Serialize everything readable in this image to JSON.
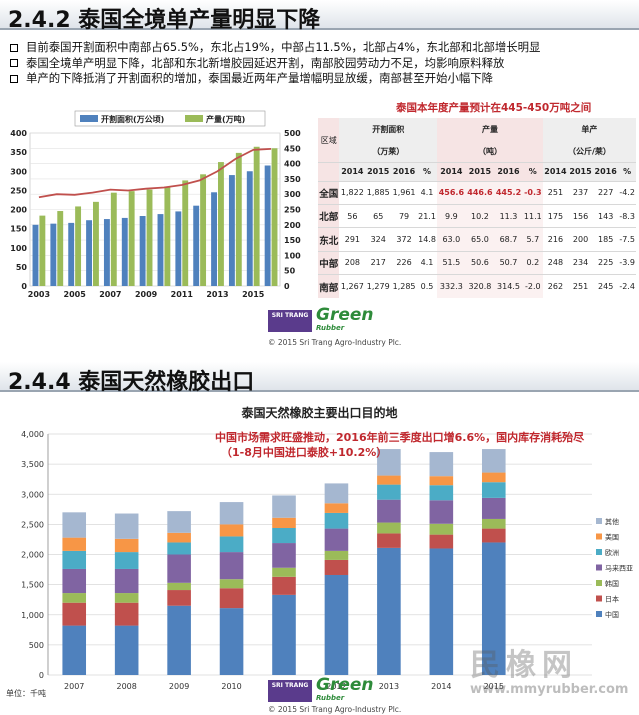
{
  "section1": {
    "title": "2.4.2 泰国全境单产量明显下降",
    "bullets": [
      "目前泰国开割面积中南部占65.5%，东北占19%，中部占11.5%，北部占4%，东北部和北部增长明显",
      "泰国全境单产明显下降，北部和东北新增胶园延迟开割，南部胶园劳动力不足，均影响原料释放",
      "单产的下降抵消了开割面积的增加，泰国最近两年产量增幅明显放缓，南部甚至开始小幅下降"
    ],
    "table_note": "泰国本年度产量预计在445-450万吨之间",
    "table": {
      "region_header": "区域",
      "groups": [
        {
          "name": "开割面积",
          "unit": "（万莱）"
        },
        {
          "name": "产量",
          "unit": "（吨）"
        },
        {
          "name": "单产",
          "unit": "（公斤/莱）"
        }
      ],
      "subheaders": [
        "2014",
        "2015",
        "2016",
        "%"
      ],
      "rows": [
        {
          "region": "全国",
          "area": [
            "1,822",
            "1,885",
            "1,961",
            "4.1"
          ],
          "output": [
            "456.6",
            "446.6",
            "445.2",
            "-0.3"
          ],
          "yield": [
            "251",
            "237",
            "227",
            "-4.2"
          ]
        },
        {
          "region": "北部",
          "area": [
            "56",
            "65",
            "79",
            "21.1"
          ],
          "output": [
            "9.9",
            "10.2",
            "11.3",
            "11.1"
          ],
          "yield": [
            "175",
            "156",
            "143",
            "-8.3"
          ]
        },
        {
          "region": "东北",
          "area": [
            "291",
            "324",
            "372",
            "14.8"
          ],
          "output": [
            "63.0",
            "65.0",
            "68.7",
            "5.7"
          ],
          "yield": [
            "216",
            "200",
            "185",
            "-7.5"
          ]
        },
        {
          "region": "中部",
          "area": [
            "208",
            "217",
            "226",
            "4.1"
          ],
          "output": [
            "51.5",
            "50.6",
            "50.7",
            "0.2"
          ],
          "yield": [
            "248",
            "234",
            "225",
            "-3.9"
          ]
        },
        {
          "region": "南部",
          "area": [
            "1,267",
            "1,279",
            "1,285",
            "0.5"
          ],
          "output": [
            "332.3",
            "320.8",
            "314.5",
            "-2.0"
          ],
          "yield": [
            "262",
            "251",
            "245",
            "-2.4"
          ]
        }
      ]
    },
    "logo": {
      "badge": "SRI TRANG",
      "green": "Green",
      "rubber": "Rubber"
    },
    "copyright": "© 2015 Sri Trang Agro-Industry Plc."
  },
  "section2": {
    "title": "2.4.4 泰国天然橡胶出口",
    "chart_title": "泰国天然橡胶主要出口目的地",
    "note_line1": "中国市场需求旺盛推动，2016年前三季度出口增6.6%，国内库存消耗殆尽",
    "note_line2": "（1-8月中国进口泰胶+10.2%）",
    "unit": "单位：千吨",
    "logo": {
      "badge": "SRI TRANG",
      "green": "Green",
      "rubber": "Rubber"
    },
    "copyright": "© 2015 Sri Trang Agro-Industry Plc."
  },
  "watermark": {
    "text": "民橡网",
    "url": "www.mmyrubber.com"
  },
  "chart_data": [
    {
      "type": "bar",
      "x": [
        2003,
        2004,
        2005,
        2006,
        2007,
        2008,
        2009,
        2010,
        2011,
        2012,
        2013,
        2014,
        2015,
        2016
      ],
      "xticks": [
        "2003",
        "2005",
        "2007",
        "2009",
        "2011",
        "2013",
        "2015"
      ],
      "series": [
        {
          "name": "开割面积(万公顷)",
          "type": "bar",
          "axis": "left",
          "color": "#4f81bd",
          "values": [
            160,
            163,
            165,
            172,
            175,
            178,
            183,
            188,
            195,
            210,
            245,
            290,
            300,
            315
          ]
        },
        {
          "name": "产量(万吨)",
          "type": "bar",
          "axis": "right",
          "color": "#9bbb59",
          "values": [
            230,
            245,
            260,
            275,
            305,
            310,
            315,
            325,
            345,
            365,
            405,
            435,
            455,
            450
          ]
        },
        {
          "type": "line",
          "axis": "right",
          "color": "#c0504d",
          "values": [
            290,
            300,
            298,
            305,
            315,
            312,
            318,
            322,
            330,
            345,
            375,
            415,
            445,
            448
          ]
        }
      ],
      "ylim_left": [
        0,
        400
      ],
      "yticks_left": [
        0,
        50,
        100,
        150,
        200,
        250,
        300,
        350,
        400
      ],
      "ylim_right": [
        0,
        500
      ],
      "yticks_right": [
        0,
        50,
        100,
        150,
        200,
        250,
        300,
        350,
        400,
        450,
        500
      ],
      "legend_position": "top",
      "colors": {
        "area": "#4f81bd",
        "output": "#9bbb59",
        "line": "#c0504d"
      }
    },
    {
      "type": "bar",
      "stacked": true,
      "title": "泰国天然橡胶主要出口目的地",
      "categories": [
        "2007",
        "2008",
        "2009",
        "2010",
        "2011",
        "2012",
        "2013",
        "2014",
        "2015"
      ],
      "ylim": [
        0,
        4000
      ],
      "yticks": [
        "0",
        "500",
        "1,000",
        "1,500",
        "2,000",
        "2,500",
        "3,000",
        "3,500",
        "4,000"
      ],
      "ylabel": "单位：千吨",
      "legend_position": "right",
      "series": [
        {
          "name": "中国",
          "color": "#4f81bd",
          "values": [
            820,
            820,
            1150,
            1110,
            1330,
            1660,
            2110,
            2100,
            2200
          ]
        },
        {
          "name": "日本",
          "color": "#c0504d",
          "values": [
            380,
            380,
            260,
            330,
            300,
            250,
            240,
            230,
            230
          ]
        },
        {
          "name": "韩国",
          "color": "#9bbb59",
          "values": [
            160,
            160,
            120,
            150,
            150,
            150,
            180,
            180,
            160
          ]
        },
        {
          "name": "马来西亚",
          "color": "#8064a2",
          "values": [
            400,
            400,
            470,
            450,
            410,
            370,
            380,
            390,
            350
          ]
        },
        {
          "name": "欧洲",
          "color": "#4bacc6",
          "values": [
            300,
            280,
            200,
            260,
            250,
            260,
            250,
            250,
            260
          ]
        },
        {
          "name": "美国",
          "color": "#f79646",
          "values": [
            220,
            220,
            160,
            200,
            170,
            160,
            150,
            150,
            160
          ]
        },
        {
          "name": "其他",
          "color": "#a5b7d0",
          "values": [
            420,
            420,
            360,
            370,
            370,
            330,
            440,
            400,
            390
          ]
        }
      ]
    }
  ]
}
